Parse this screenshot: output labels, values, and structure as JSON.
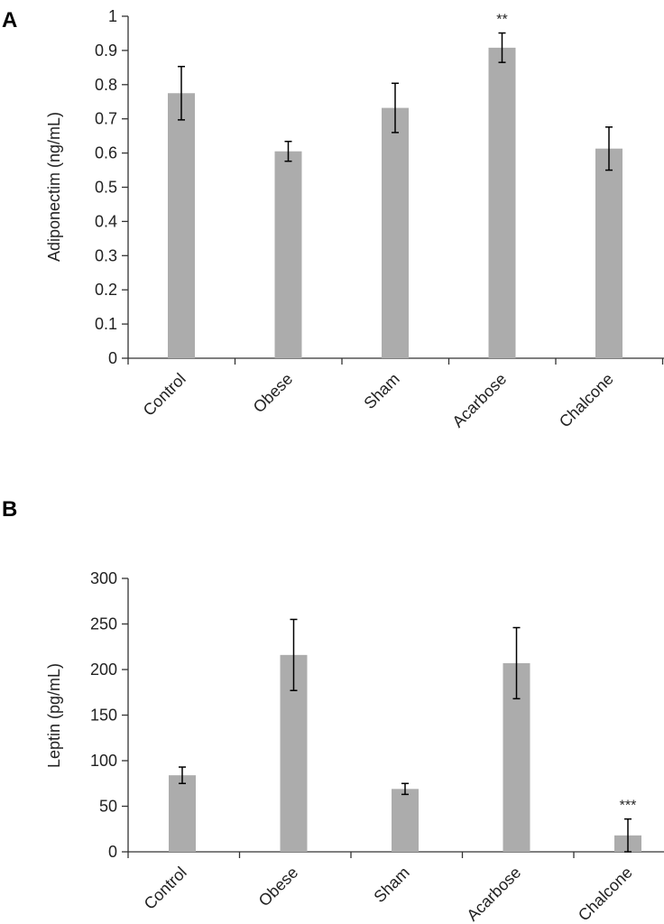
{
  "chart_data": [
    {
      "type": "bar",
      "panel": "A",
      "title": "",
      "xlabel": "",
      "ylabel": "Adiponectim (ng/mL)",
      "categories": [
        "Control",
        "Obese",
        "Sham",
        "Acarbose",
        "Chalcone"
      ],
      "values": [
        0.775,
        0.605,
        0.732,
        0.908,
        0.613
      ],
      "errors": [
        0.078,
        0.029,
        0.072,
        0.043,
        0.063
      ],
      "annotations": [
        "",
        "",
        "",
        "**",
        ""
      ],
      "ylim": [
        0,
        1
      ],
      "yticks": [
        0,
        0.1,
        0.2,
        0.3,
        0.4,
        0.5,
        0.6,
        0.7,
        0.8,
        0.9,
        1
      ],
      "ytick_labels": [
        "0",
        "0.1",
        "0.2",
        "0.3",
        "0.4",
        "0.5",
        "0.6",
        "0.7",
        "0.8",
        "0.9",
        "1"
      ],
      "bar_color": "#acacac",
      "grid": false
    },
    {
      "type": "bar",
      "panel": "B",
      "title": "",
      "xlabel": "",
      "ylabel": "Leptin (pg/mL)",
      "categories": [
        "Control",
        "Obese",
        "Sham",
        "Acarbose",
        "Chalcone"
      ],
      "values": [
        84,
        216,
        69,
        207,
        18
      ],
      "errors": [
        9,
        39,
        6,
        39,
        18
      ],
      "annotations": [
        "",
        "",
        "",
        "",
        "***"
      ],
      "ylim": [
        0,
        300
      ],
      "yticks": [
        0,
        50,
        100,
        150,
        200,
        250,
        300
      ],
      "ytick_labels": [
        "0",
        "50",
        "100",
        "150",
        "200",
        "250",
        "300"
      ],
      "bar_color": "#acacac",
      "grid": false
    }
  ]
}
